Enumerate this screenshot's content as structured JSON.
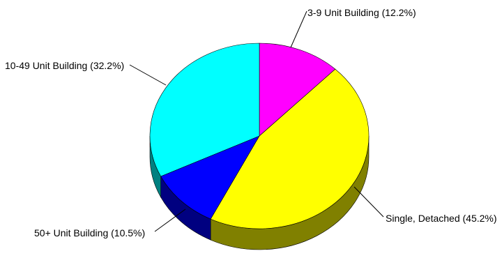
{
  "chart_data": {
    "type": "pie",
    "title": "",
    "style": "3d",
    "slices": [
      {
        "label": "3-9 Unit Building (12.2%)",
        "category": "3-9 Unit Building",
        "value": 12.2,
        "color": "#ff00ff",
        "side_color": "#800080"
      },
      {
        "label": "Single, Detached (45.2%)",
        "category": "Single, Detached",
        "value": 45.2,
        "color": "#ffff00",
        "side_color": "#808000"
      },
      {
        "label": "50+ Unit Building (10.5%)",
        "category": "50+ Unit Building",
        "value": 10.5,
        "color": "#0000ff",
        "side_color": "#000080"
      },
      {
        "label": "10-49 Unit Building (32.2%)",
        "category": "10-49 Unit Building",
        "value": 32.2,
        "color": "#00ffff",
        "side_color": "#008080"
      }
    ]
  }
}
